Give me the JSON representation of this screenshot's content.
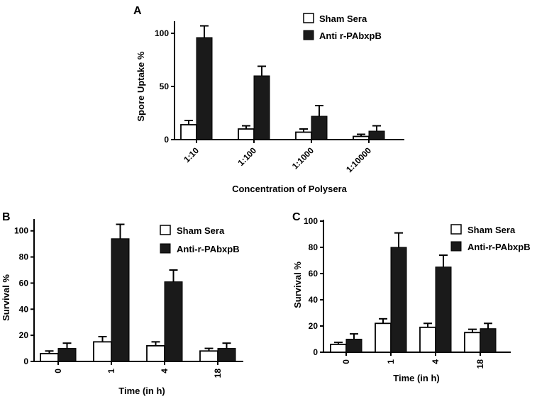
{
  "colors": {
    "sham": "#ffffff",
    "anti": "#1a1a1a",
    "axis": "#000000"
  },
  "chart_data": [
    {
      "id": "A",
      "type": "bar",
      "panel_label": "A",
      "title": "",
      "xlabel": "Concentration of Polysera",
      "ylabel": "Spore Uptake %",
      "categories": [
        "1:10",
        "1:100",
        "1:1000",
        "1:10000"
      ],
      "ylim": [
        0,
        110
      ],
      "yticks": [
        0,
        50,
        100
      ],
      "tick_rotation": -45,
      "legend_position": "top-right",
      "series": [
        {
          "name": "Sham Sera",
          "values": [
            14,
            10,
            7,
            3
          ],
          "errors": [
            4,
            3,
            3,
            2
          ]
        },
        {
          "name": "Anti r-PAbxpB",
          "values": [
            96,
            60,
            22,
            8
          ],
          "errors": [
            11,
            9,
            10,
            5
          ]
        }
      ]
    },
    {
      "id": "B",
      "type": "bar",
      "panel_label": "B",
      "title": "",
      "xlabel": "Time (in h)",
      "ylabel": "Survival %",
      "categories": [
        "0",
        "1",
        "4",
        "18"
      ],
      "ylim": [
        0,
        108
      ],
      "yticks": [
        0,
        20,
        40,
        60,
        80,
        100
      ],
      "tick_rotation": -90,
      "legend_position": "top-right",
      "series": [
        {
          "name": "Sham Sera",
          "values": [
            6,
            15,
            12,
            8
          ],
          "errors": [
            2,
            4,
            3,
            2
          ]
        },
        {
          "name": "Anti-r-PAbxpB",
          "values": [
            10,
            94,
            61,
            10
          ],
          "errors": [
            4,
            11,
            9,
            4
          ]
        }
      ]
    },
    {
      "id": "C",
      "type": "bar",
      "panel_label": "C",
      "title": "",
      "xlabel": "Time (in h)",
      "ylabel": "Survival %",
      "categories": [
        "0",
        "1",
        "4",
        "18"
      ],
      "ylim": [
        0,
        100
      ],
      "yticks": [
        0,
        20,
        40,
        60,
        80,
        100
      ],
      "tick_rotation": -90,
      "legend_position": "top-right",
      "series": [
        {
          "name": "Sham Sera",
          "values": [
            6,
            22,
            19,
            15
          ],
          "errors": [
            1.5,
            3.5,
            3,
            2.5
          ]
        },
        {
          "name": "Anti-r-PAbxpB",
          "values": [
            10,
            80,
            65,
            18
          ],
          "errors": [
            4,
            11,
            9,
            4
          ]
        }
      ]
    }
  ]
}
